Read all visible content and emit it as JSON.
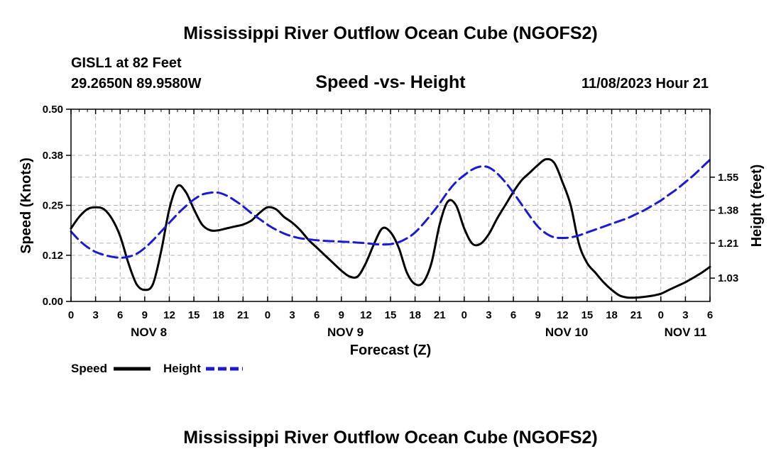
{
  "chart_data": {
    "type": "line",
    "title": "Mississippi River Outflow Ocean Cube (NGOFS2)",
    "footer_title": "Mississippi River Outflow Ocean Cube (NGOFS2)",
    "station": "GISL1 at 82 Feet",
    "coordinates": "29.2650N  89.9580W",
    "subtitle": "Speed -vs- Height",
    "timestamp": "11/08/2023 Hour 21",
    "xlabel": "Forecast (Z)",
    "ylabel": "Speed (Knots)",
    "y2label": "Height (feet)",
    "xlim": [
      0,
      78
    ],
    "ylim": [
      0,
      0.5
    ],
    "y2lim": [
      0.91,
      1.9
    ],
    "x_tick_labels": [
      "0",
      "3",
      "6",
      "9",
      "12",
      "15",
      "18",
      "21",
      "0",
      "3",
      "6",
      "9",
      "12",
      "15",
      "18",
      "21",
      "0",
      "3",
      "6",
      "9",
      "12",
      "15",
      "18",
      "21",
      "0",
      "3",
      "6"
    ],
    "day_labels": [
      {
        "label": "NOV 8",
        "hour": 9.5
      },
      {
        "label": "NOV 9",
        "hour": 33.5
      },
      {
        "label": "NOV 10",
        "hour": 60.5
      },
      {
        "label": "NOV 11",
        "hour": 75
      }
    ],
    "y_ticks": [
      0.0,
      0.12,
      0.25,
      0.38,
      0.5
    ],
    "y_tick_labels": [
      "0.00",
      "0.12",
      "0.25",
      "0.38",
      "0.50"
    ],
    "y2_ticks": [
      1.03,
      1.21,
      1.38,
      1.55
    ],
    "y2_tick_labels": [
      "1.03",
      "1.21",
      "1.38",
      "1.55"
    ],
    "grid": true,
    "legend": [
      {
        "name": "Speed",
        "color": "#000000",
        "style": "solid"
      },
      {
        "name": "Height",
        "color": "#1a1ad2",
        "style": "dashed"
      }
    ],
    "series": [
      {
        "name": "Speed",
        "axis": "left",
        "color": "#000000",
        "x": [
          0,
          1,
          2,
          3,
          4,
          5,
          6,
          7,
          8,
          9,
          10,
          11,
          12,
          13,
          14,
          15,
          16,
          17,
          18,
          19,
          20,
          21,
          22,
          23,
          24,
          25,
          26,
          27,
          28,
          29,
          30,
          31,
          32,
          33,
          34,
          35,
          36,
          37,
          38,
          39,
          40,
          41,
          42,
          43,
          44,
          45,
          46,
          47,
          48,
          49,
          50,
          51,
          52,
          53,
          54,
          55,
          56,
          57,
          58,
          59,
          60,
          61,
          62,
          63,
          64,
          65,
          66,
          67,
          68,
          69,
          70,
          71,
          72,
          73,
          74,
          75,
          76,
          77,
          78
        ],
        "values": [
          0.19,
          0.22,
          0.24,
          0.245,
          0.24,
          0.215,
          0.17,
          0.1,
          0.045,
          0.03,
          0.045,
          0.13,
          0.24,
          0.3,
          0.285,
          0.24,
          0.2,
          0.185,
          0.185,
          0.19,
          0.195,
          0.2,
          0.21,
          0.23,
          0.245,
          0.24,
          0.22,
          0.205,
          0.185,
          0.16,
          0.14,
          0.12,
          0.1,
          0.08,
          0.065,
          0.065,
          0.1,
          0.15,
          0.19,
          0.18,
          0.14,
          0.075,
          0.045,
          0.05,
          0.1,
          0.2,
          0.26,
          0.25,
          0.19,
          0.15,
          0.15,
          0.175,
          0.215,
          0.25,
          0.285,
          0.315,
          0.335,
          0.355,
          0.37,
          0.36,
          0.31,
          0.25,
          0.15,
          0.1,
          0.075,
          0.05,
          0.03,
          0.015,
          0.01,
          0.01,
          0.012,
          0.015,
          0.02,
          0.03,
          0.04,
          0.05,
          0.062,
          0.075,
          0.09
        ]
      },
      {
        "name": "Height",
        "axis": "right",
        "color": "#1a1ad2",
        "x": [
          0,
          1,
          2,
          3,
          4,
          5,
          6,
          7,
          8,
          9,
          10,
          11,
          12,
          13,
          14,
          15,
          16,
          17,
          18,
          19,
          20,
          21,
          22,
          23,
          24,
          25,
          26,
          27,
          28,
          29,
          30,
          31,
          32,
          33,
          34,
          35,
          36,
          37,
          38,
          39,
          40,
          41,
          42,
          43,
          44,
          45,
          46,
          47,
          48,
          49,
          50,
          51,
          52,
          53,
          54,
          55,
          56,
          57,
          58,
          59,
          60,
          61,
          62,
          63,
          64,
          65,
          66,
          67,
          68,
          69,
          70,
          71,
          72,
          73,
          74,
          75,
          76,
          77,
          78
        ],
        "values": [
          1.27,
          1.225,
          1.19,
          1.165,
          1.15,
          1.14,
          1.135,
          1.14,
          1.155,
          1.185,
          1.225,
          1.27,
          1.315,
          1.36,
          1.4,
          1.435,
          1.46,
          1.47,
          1.47,
          1.455,
          1.43,
          1.4,
          1.365,
          1.335,
          1.305,
          1.28,
          1.26,
          1.245,
          1.235,
          1.23,
          1.225,
          1.222,
          1.22,
          1.218,
          1.216,
          1.213,
          1.21,
          1.205,
          1.203,
          1.205,
          1.215,
          1.235,
          1.265,
          1.31,
          1.36,
          1.415,
          1.475,
          1.525,
          1.56,
          1.59,
          1.605,
          1.6,
          1.57,
          1.525,
          1.47,
          1.41,
          1.35,
          1.295,
          1.26,
          1.24,
          1.237,
          1.24,
          1.25,
          1.265,
          1.28,
          1.295,
          1.31,
          1.325,
          1.34,
          1.36,
          1.38,
          1.405,
          1.43,
          1.46,
          1.49,
          1.525,
          1.56,
          1.6,
          1.64
        ]
      }
    ]
  }
}
